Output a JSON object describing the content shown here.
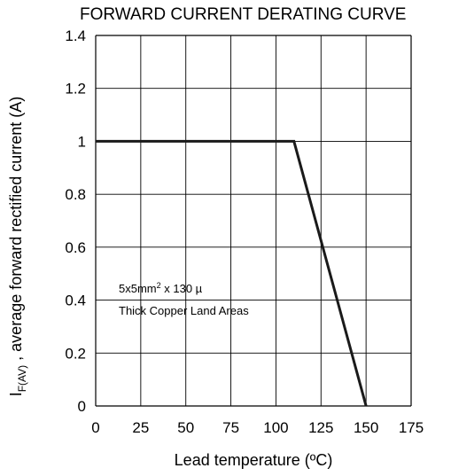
{
  "chart_data": {
    "type": "line",
    "title": "FORWARD CURRENT DERATING CURVE",
    "xlabel": "Lead temperature (ºC)",
    "ylabel_main": "I",
    "ylabel_sub": "F(AV)",
    "ylabel_rest": " , average forward rectified current (A)",
    "xlim": [
      0,
      175
    ],
    "ylim": [
      0,
      1.4
    ],
    "x_ticks": [
      "0",
      "25",
      "50",
      "75",
      "100",
      "125",
      "150",
      "175"
    ],
    "x_tick_values": [
      0,
      25,
      50,
      75,
      100,
      125,
      150,
      175
    ],
    "y_ticks": [
      "0",
      "0.2",
      "0.4",
      "0.6",
      "0.8",
      "1",
      "1.2",
      "1.4"
    ],
    "y_tick_values": [
      0,
      0.2,
      0.4,
      0.6,
      0.8,
      1.0,
      1.2,
      1.4
    ],
    "grid": true,
    "series": [
      {
        "points": [
          [
            0,
            1.0
          ],
          [
            110,
            1.0
          ],
          [
            150,
            0
          ]
        ]
      }
    ],
    "annotation": {
      "line1_main": "5x5mm",
      "line1_sup": "2",
      "line1_rest": " x 130 µ",
      "line2": "Thick Copper Land Areas"
    },
    "colors": {
      "line": "#1a1a1a",
      "grid": "#000000"
    }
  }
}
